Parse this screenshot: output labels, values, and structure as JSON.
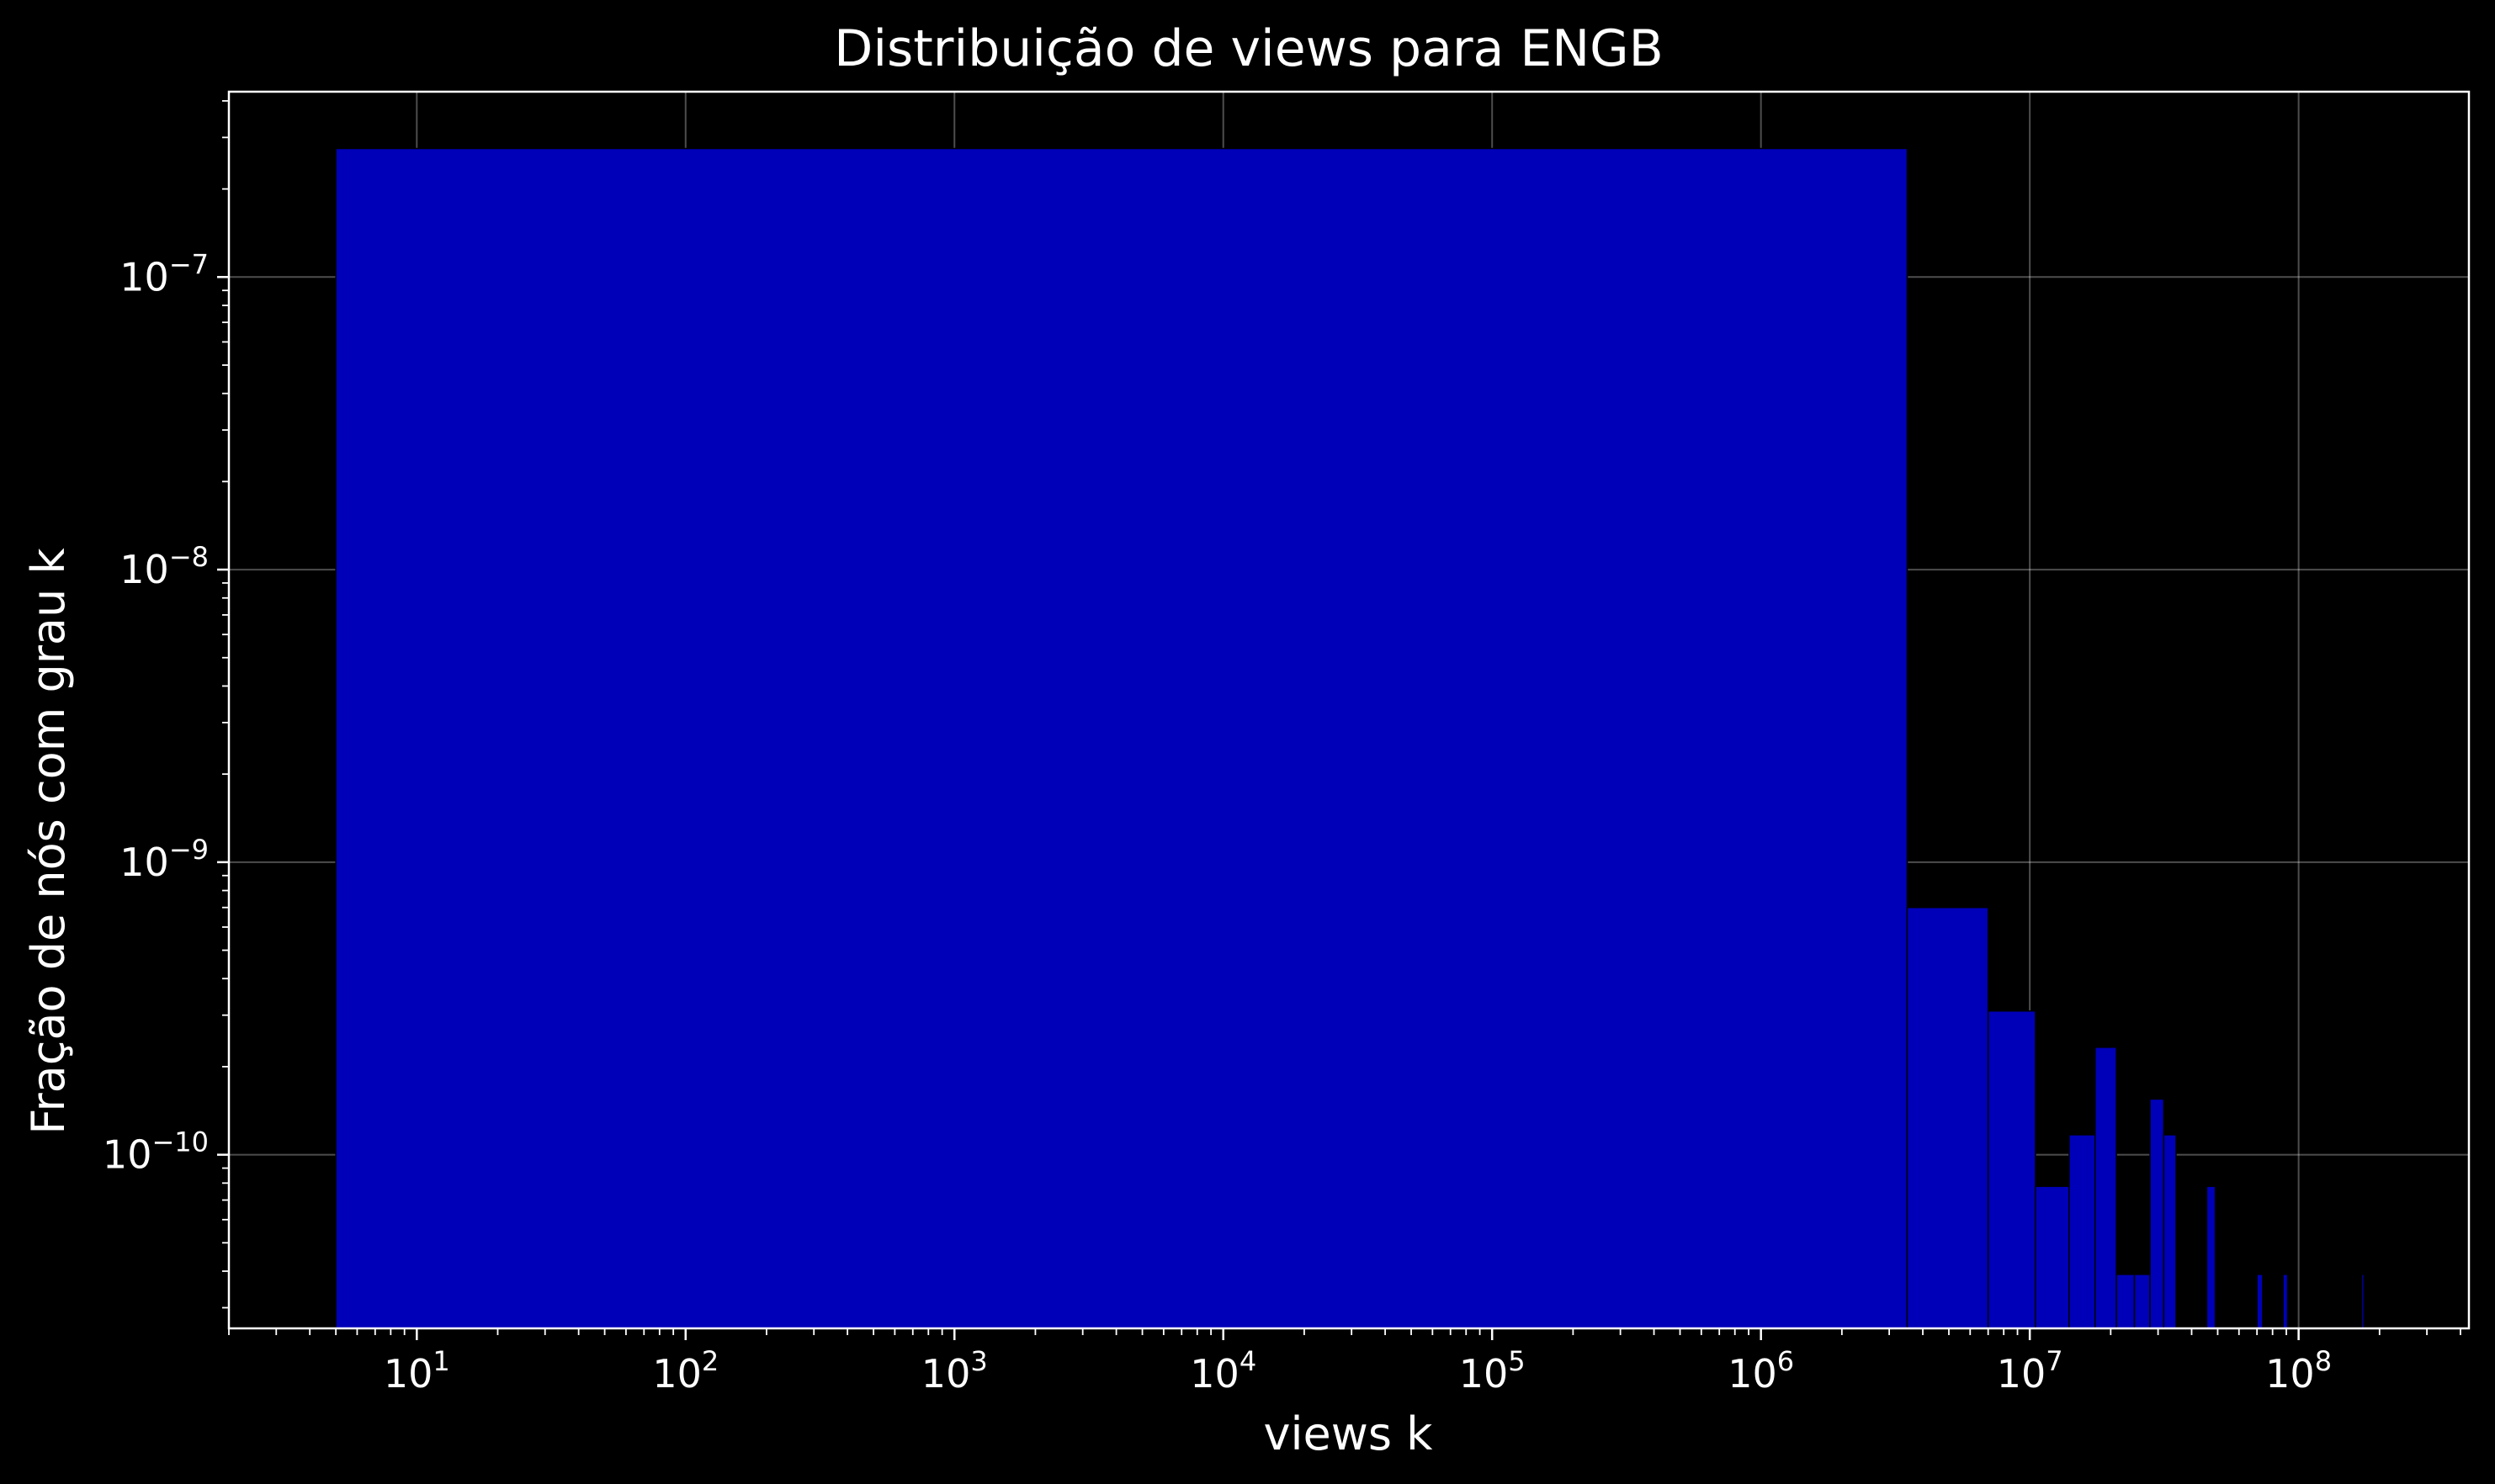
{
  "chart_data": {
    "type": "bar",
    "title": "Distribuição de views para ENGB",
    "xlabel": "views k",
    "ylabel": "Fração de nós com grau k",
    "xscale": "log",
    "yscale": "log",
    "xlim": [
      2,
      430000000
    ],
    "ylim": [
      2.55e-11,
      4.3e-07
    ],
    "grid": true,
    "legend": "none",
    "x_tick_labels": [
      {
        "value": 10,
        "mantissa": "10",
        "exp": "1"
      },
      {
        "value": 100,
        "mantissa": "10",
        "exp": "2"
      },
      {
        "value": 1000,
        "mantissa": "10",
        "exp": "3"
      },
      {
        "value": 10000,
        "mantissa": "10",
        "exp": "4"
      },
      {
        "value": 100000,
        "mantissa": "10",
        "exp": "5"
      },
      {
        "value": 1000000,
        "mantissa": "10",
        "exp": "6"
      },
      {
        "value": 10000000,
        "mantissa": "10",
        "exp": "7"
      },
      {
        "value": 100000000,
        "mantissa": "10",
        "exp": "8"
      }
    ],
    "y_tick_labels": [
      {
        "value": 1e-07,
        "mantissa": "10",
        "exp": "−7"
      },
      {
        "value": 1e-08,
        "mantissa": "10",
        "exp": "−8"
      },
      {
        "value": 1e-09,
        "mantissa": "10",
        "exp": "−9"
      },
      {
        "value": 1e-10,
        "mantissa": "10",
        "exp": "−10"
      }
    ],
    "series": [
      {
        "color": "#0000b8",
        "bins": [
          {
            "x0": 5,
            "x1": 3500000,
            "y": 2.75e-07
          },
          {
            "x0": 3500000,
            "x1": 7000000,
            "y": 7e-10
          },
          {
            "x0": 7000000,
            "x1": 10500000,
            "y": 3.1e-10
          },
          {
            "x0": 10500000,
            "x1": 14000000,
            "y": 7.8e-11
          },
          {
            "x0": 14000000,
            "x1": 17500000,
            "y": 1.17e-10
          },
          {
            "x0": 17500000,
            "x1": 21000000,
            "y": 2.33e-10
          },
          {
            "x0": 21000000,
            "x1": 24500000,
            "y": 3.9e-11
          },
          {
            "x0": 24500000,
            "x1": 28000000,
            "y": 3.9e-11
          },
          {
            "x0": 28000000,
            "x1": 31500000,
            "y": 1.55e-10
          },
          {
            "x0": 31500000,
            "x1": 35000000,
            "y": 1.17e-10
          },
          {
            "x0": 45500000,
            "x1": 49000000,
            "y": 7.8e-11
          },
          {
            "x0": 70000000,
            "x1": 73500000,
            "y": 3.9e-11
          },
          {
            "x0": 87500000,
            "x1": 91000000,
            "y": 3.9e-11
          },
          {
            "x0": 171500000,
            "x1": 175000000,
            "y": 3.9e-11
          }
        ]
      }
    ]
  }
}
